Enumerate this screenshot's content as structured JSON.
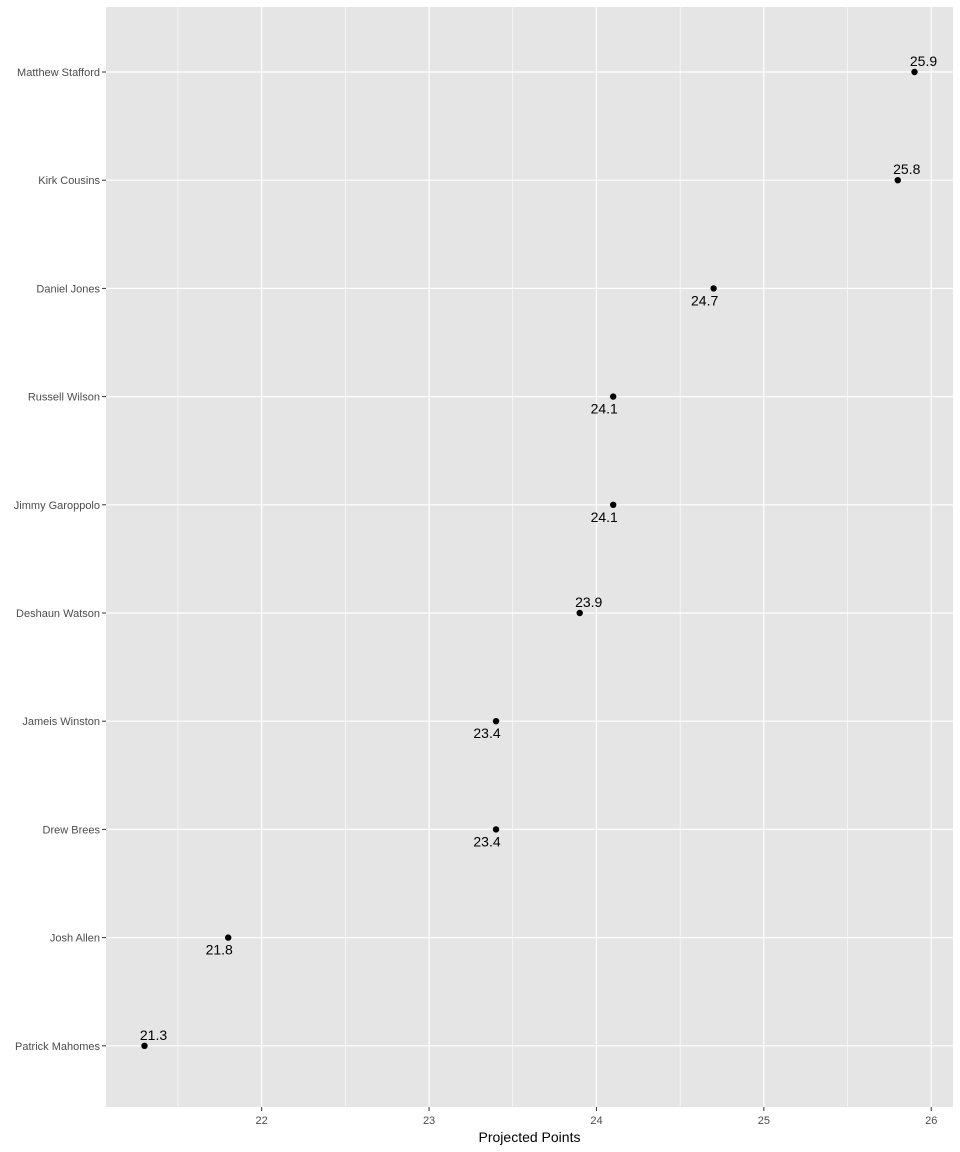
{
  "chart_data": {
    "type": "scatter",
    "title": "",
    "xlabel": "Projected Points",
    "ylabel": "",
    "xlim": [
      21.07,
      26.13
    ],
    "x_ticks": [
      22,
      23,
      24,
      25,
      26
    ],
    "grid": true,
    "colors": {
      "panel_background": "#e5e5e5",
      "grid_major": "#ffffff",
      "point": "#000000",
      "tick_text": "#4d4d4d"
    },
    "categories": [
      "Matthew Stafford",
      "Kirk Cousins",
      "Daniel Jones",
      "Russell Wilson",
      "Jimmy Garoppolo",
      "Deshaun Watson",
      "Jameis Winston",
      "Drew Brees",
      "Josh Allen",
      "Patrick Mahomes"
    ],
    "values": [
      25.9,
      25.8,
      24.7,
      24.1,
      24.1,
      23.9,
      23.4,
      23.4,
      21.8,
      21.3
    ],
    "labels": [
      "25.9",
      "25.8",
      "24.7",
      "24.1",
      "24.1",
      "23.9",
      "23.4",
      "23.4",
      "21.8",
      "21.3"
    ],
    "label_side": [
      "above",
      "above",
      "below",
      "below",
      "below",
      "above",
      "below",
      "below",
      "below",
      "above"
    ]
  }
}
